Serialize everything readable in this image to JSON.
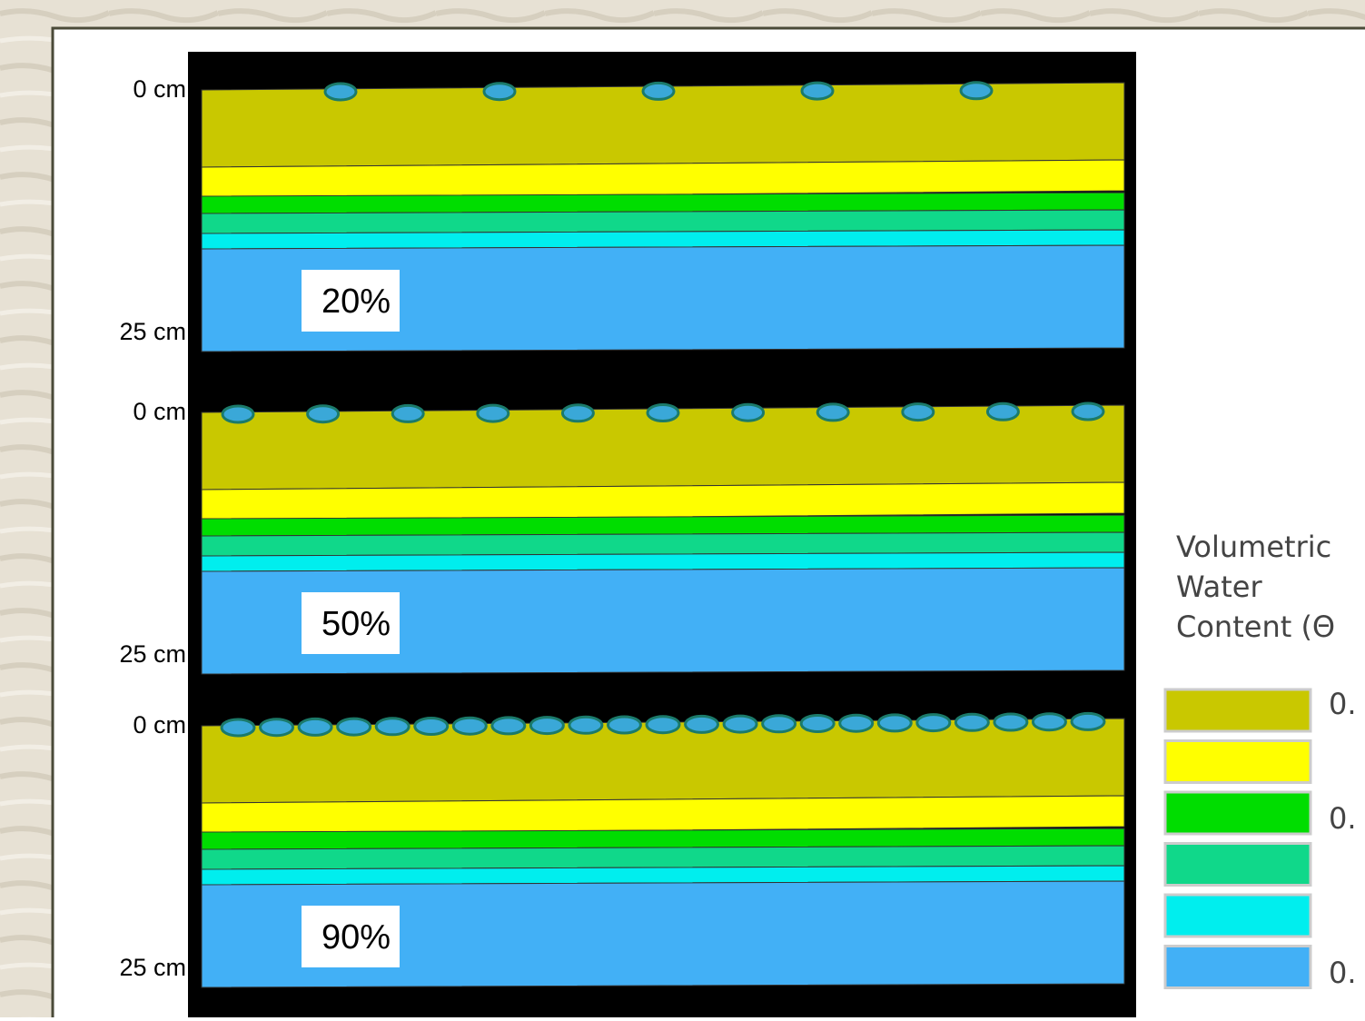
{
  "panels": [
    {
      "label": "20%",
      "top_depth": "0 cm",
      "bottom_depth": "25 cm"
    },
    {
      "label": "50%",
      "top_depth": "0 cm",
      "bottom_depth": "25 cm"
    },
    {
      "label": "90%",
      "top_depth": "0 cm",
      "bottom_depth": "25 cm"
    }
  ],
  "legend": {
    "title": [
      "Volumetric",
      "Water",
      "Content (Θ"
    ],
    "labels": [
      "0.",
      "0.",
      "0."
    ]
  }
}
